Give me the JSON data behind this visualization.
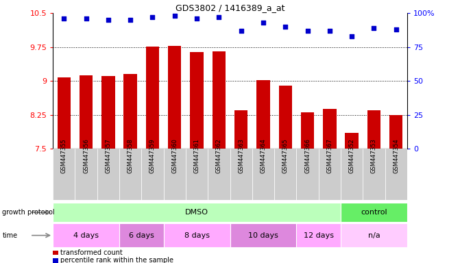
{
  "title": "GDS3802 / 1416389_a_at",
  "samples": [
    "GSM447355",
    "GSM447356",
    "GSM447357",
    "GSM447358",
    "GSM447359",
    "GSM447360",
    "GSM447361",
    "GSM447362",
    "GSM447363",
    "GSM447364",
    "GSM447365",
    "GSM447366",
    "GSM447367",
    "GSM447352",
    "GSM447353",
    "GSM447354"
  ],
  "transformed_count": [
    9.08,
    9.13,
    9.1,
    9.15,
    9.76,
    9.77,
    9.64,
    9.66,
    8.35,
    9.02,
    8.89,
    8.3,
    8.38,
    7.85,
    8.35,
    8.25
  ],
  "percentile_rank": [
    96,
    96,
    95,
    95,
    97,
    98,
    96,
    97,
    87,
    93,
    90,
    87,
    87,
    83,
    89,
    88
  ],
  "ylim_left": [
    7.5,
    10.5
  ],
  "ylim_right": [
    0,
    100
  ],
  "yticks_left": [
    7.5,
    8.25,
    9.0,
    9.75,
    10.5
  ],
  "yticks_right": [
    0,
    25,
    50,
    75,
    100
  ],
  "ytick_labels_left": [
    "7.5",
    "8.25",
    "9",
    "9.75",
    "10.5"
  ],
  "ytick_labels_right": [
    "0",
    "25",
    "50",
    "75",
    "100%"
  ],
  "bar_color": "#cc0000",
  "dot_color": "#0000cc",
  "tick_label_bg": "#cccccc",
  "dmso_color": "#bbffbb",
  "control_color": "#66ee66",
  "time_colors": [
    "#ffaaff",
    "#dd88dd",
    "#ffaaff",
    "#dd88dd",
    "#ffaaff",
    "#ffccff"
  ],
  "time_na_color": "#ffccff",
  "groups": {
    "DMSO": [
      0,
      13
    ],
    "control": [
      13,
      16
    ]
  },
  "time_groups": [
    {
      "label": "4 days",
      "start": 0,
      "end": 3
    },
    {
      "label": "6 days",
      "start": 3,
      "end": 5
    },
    {
      "label": "8 days",
      "start": 5,
      "end": 8
    },
    {
      "label": "10 days",
      "start": 8,
      "end": 11
    },
    {
      "label": "12 days",
      "start": 11,
      "end": 13
    },
    {
      "label": "n/a",
      "start": 13,
      "end": 16
    }
  ],
  "growth_protocol_label": "growth protocol",
  "time_label": "time",
  "legend_transformed": "transformed count",
  "legend_percentile": "percentile rank within the sample"
}
